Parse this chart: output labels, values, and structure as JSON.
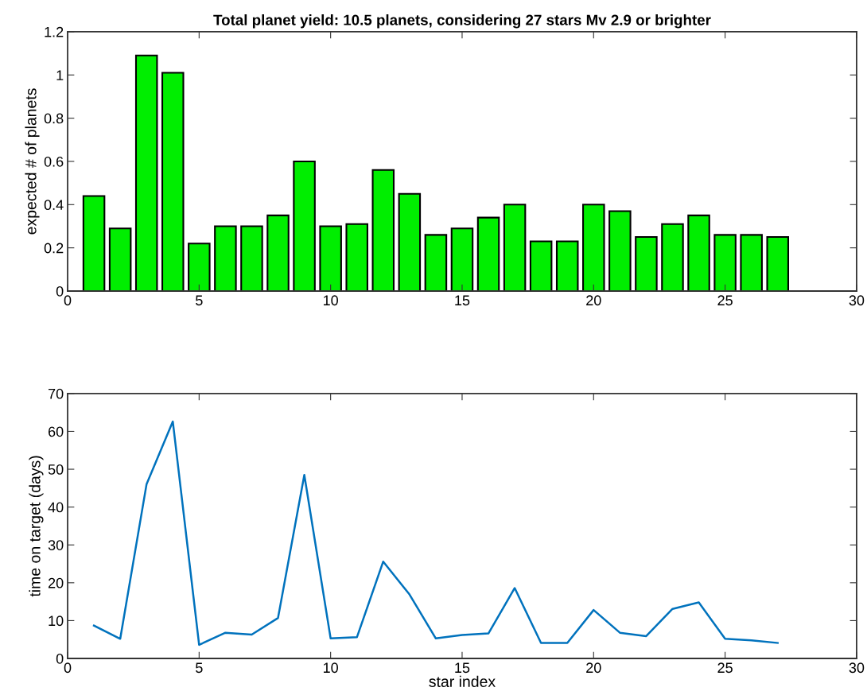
{
  "chart_data": [
    {
      "type": "bar",
      "title": "Total planet yield: 10.5 planets, considering 27 stars Mv 2.9 or brighter",
      "ylabel": "expected # of planets",
      "x": [
        1,
        2,
        3,
        4,
        5,
        6,
        7,
        8,
        9,
        10,
        11,
        12,
        13,
        14,
        15,
        16,
        17,
        18,
        19,
        20,
        21,
        22,
        23,
        24,
        25,
        26,
        27
      ],
      "series": [
        {
          "color": "#00ee00",
          "values": [
            0.44,
            0.29,
            1.09,
            1.01,
            0.22,
            0.3,
            0.3,
            0.35,
            0.6,
            0.3,
            0.31,
            0.56,
            0.45,
            0.26,
            0.29,
            0.34,
            0.4,
            0.23,
            0.23,
            0.4,
            0.37,
            0.25,
            0.31,
            0.35,
            0.26,
            0.26,
            0.25
          ]
        }
      ],
      "xlim": [
        0,
        30
      ],
      "xticks": [
        0,
        5,
        10,
        15,
        20,
        25,
        30
      ],
      "ylim": [
        0,
        1.2
      ],
      "yticks": [
        0,
        {
          "value": 0.2,
          "label": "0.2"
        },
        {
          "value": 0.4,
          "label": "0.4"
        },
        {
          "value": 0.6,
          "label": "0.6"
        },
        {
          "value": 0.8,
          "label": "0.8"
        },
        1,
        {
          "value": 1.2,
          "label": "1.2"
        }
      ],
      "grid": false,
      "legend": false
    },
    {
      "type": "line",
      "xlabel": "star index",
      "ylabel": "time on target (days)",
      "x": [
        1,
        2,
        3,
        4,
        5,
        6,
        7,
        8,
        9,
        10,
        11,
        12,
        13,
        14,
        15,
        16,
        17,
        18,
        19,
        20,
        21,
        22,
        23,
        24,
        25,
        26,
        27
      ],
      "series": [
        {
          "color": "#0072bd",
          "values": [
            8.7,
            5.2,
            46,
            62.6,
            3.6,
            6.8,
            6.3,
            10.7,
            48.5,
            5.3,
            5.6,
            25.6,
            16.9,
            5.3,
            6.2,
            6.6,
            18.6,
            4.1,
            4.1,
            12.8,
            6.8,
            5.9,
            13.1,
            14.8,
            5.2,
            4.8,
            4.1
          ]
        }
      ],
      "xlim": [
        0,
        30
      ],
      "xticks": [
        0,
        5,
        10,
        15,
        20,
        25,
        30
      ],
      "ylim": [
        0,
        70
      ],
      "yticks": [
        0,
        10,
        20,
        30,
        40,
        50,
        60,
        70
      ],
      "grid": false,
      "legend": false,
      "marker": "none",
      "line_style": "solid"
    }
  ]
}
